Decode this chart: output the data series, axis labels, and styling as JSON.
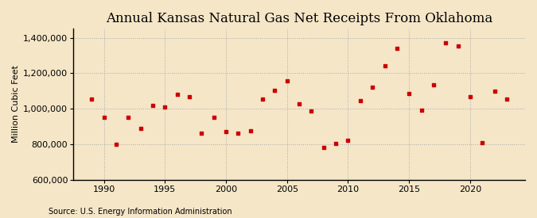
{
  "title": "Annual Kansas Natural Gas Net Receipts From Oklahoma",
  "ylabel": "Million Cubic Feet",
  "source": "Source: U.S. Energy Information Administration",
  "background_color": "#f5e6c8",
  "plot_background_color": "#f5e6c8",
  "marker_color": "#cc0000",
  "years": [
    1989,
    1990,
    1991,
    1992,
    1993,
    1994,
    1995,
    1996,
    1997,
    1998,
    1999,
    2000,
    2001,
    2002,
    2003,
    2004,
    2005,
    2006,
    2007,
    2008,
    2009,
    2010,
    2011,
    2012,
    2013,
    2014,
    2015,
    2016,
    2017,
    2018,
    2019,
    2020,
    2021,
    2022,
    2023
  ],
  "values": [
    1055000,
    950000,
    800000,
    950000,
    890000,
    1020000,
    1010000,
    1080000,
    1065000,
    860000,
    950000,
    870000,
    860000,
    875000,
    1055000,
    1105000,
    1155000,
    1025000,
    985000,
    780000,
    805000,
    820000,
    1045000,
    1120000,
    1240000,
    1340000,
    1085000,
    990000,
    1135000,
    1370000,
    1355000,
    1065000,
    810000,
    1100000,
    1055000
  ],
  "ylim": [
    600000,
    1450000
  ],
  "yticks": [
    600000,
    800000,
    1000000,
    1200000,
    1400000
  ],
  "xtick_years": [
    1990,
    1995,
    2000,
    2005,
    2010,
    2015,
    2020
  ],
  "grid_color": "#aaaaaa",
  "title_fontsize": 12,
  "label_fontsize": 8,
  "tick_fontsize": 8,
  "source_fontsize": 7
}
